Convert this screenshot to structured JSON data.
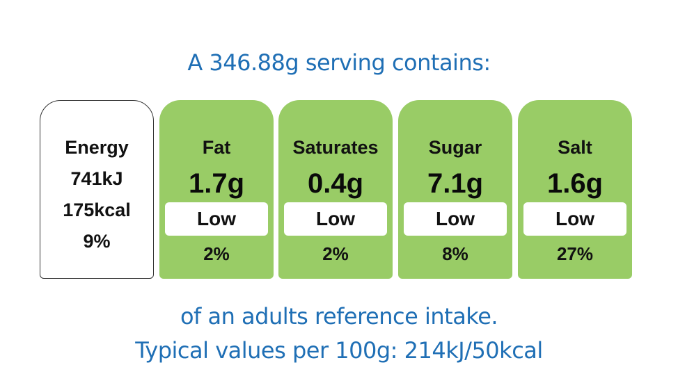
{
  "header": {
    "serving_text": "A 346.88g serving contains:"
  },
  "energy": {
    "label": "Energy",
    "kj": "741kJ",
    "kcal": "175kcal",
    "percent": "9%"
  },
  "nutrients": [
    {
      "name": "Fat",
      "value": "1.7g",
      "level": "Low",
      "percent": "2%"
    },
    {
      "name": "Saturates",
      "value": "0.4g",
      "level": "Low",
      "percent": "2%"
    },
    {
      "name": "Sugar",
      "value": "7.1g",
      "level": "Low",
      "percent": "8%"
    },
    {
      "name": "Salt",
      "value": "1.6g",
      "level": "Low",
      "percent": "27%"
    }
  ],
  "footer": {
    "reference_text": "of an adults reference intake.",
    "typical_values_text": "Typical values per 100g: 214kJ/50kcal"
  },
  "colors": {
    "low_green": "#99cc66",
    "text_blue": "#1f6fb5"
  }
}
